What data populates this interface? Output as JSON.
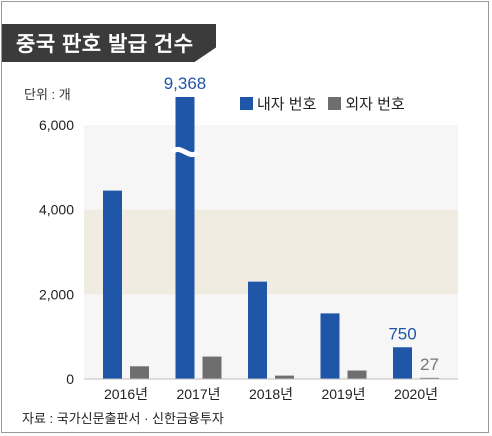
{
  "title": "중국 판호 발급 건수",
  "unit_label": "단위 : 개",
  "source": "자료 : 국가신문출판서 · 신한금융투자",
  "colors": {
    "domestic": "#1f56a8",
    "foreign": "#6e6e6e",
    "band": "#f1ece1",
    "label_blue": "#1f56a8",
    "label_gray": "#777777"
  },
  "chart_data": {
    "type": "bar",
    "categories": [
      "2016년",
      "2017년",
      "2018년",
      "2019년",
      "2020년"
    ],
    "series": [
      {
        "name": "내자 번호",
        "values": [
          4450,
          9368,
          2300,
          1550,
          750
        ]
      },
      {
        "name": "외자 번호",
        "values": [
          300,
          530,
          80,
          200,
          27
        ]
      }
    ],
    "yticks": [
      "0",
      "2,000",
      "4,000",
      "6,000"
    ],
    "ylim": [
      0,
      6000
    ],
    "axis_break": {
      "category": "2017년",
      "series": "내자 번호"
    },
    "data_labels": [
      {
        "category": "2017년",
        "series": "내자 번호",
        "text": "9,368"
      },
      {
        "category": "2020년",
        "series": "내자 번호",
        "text": "750"
      },
      {
        "category": "2020년",
        "series": "외자 번호",
        "text": "27"
      }
    ],
    "legend_position": "top-right"
  }
}
